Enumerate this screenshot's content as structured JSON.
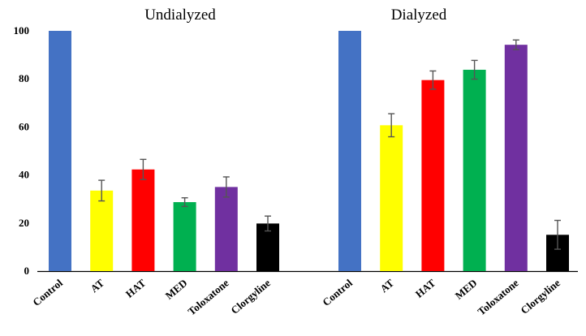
{
  "chart_data": {
    "type": "bar",
    "title": "",
    "xlabel": "",
    "ylabel": "",
    "ylim": [
      0,
      100
    ],
    "yticks": [
      "0",
      "20",
      "40",
      "60",
      "80",
      "100"
    ],
    "panels": [
      {
        "title": "Undialyzed",
        "categories": [
          "Control",
          "AT",
          "HAT",
          "MED",
          "Toloxatone",
          "Clorgyline"
        ],
        "values": [
          100,
          33.5,
          42.3,
          28.7,
          35,
          19.8
        ],
        "errors": [
          0,
          4.3,
          4.2,
          1.8,
          4.2,
          3.1
        ],
        "colors": [
          "#4472C4",
          "#FFFF00",
          "#FF0000",
          "#00B050",
          "#7030A0",
          "#000000"
        ]
      },
      {
        "title": "Dialyzed",
        "categories": [
          "Control",
          "AT",
          "HAT",
          "MED",
          "Toloxatone",
          "Clorgyline"
        ],
        "values": [
          100,
          60.7,
          79.5,
          83.8,
          94.2,
          15.1
        ],
        "errors": [
          0,
          4.8,
          3.8,
          3.9,
          2.0,
          6.0
        ],
        "colors": [
          "#4472C4",
          "#FFFF00",
          "#FF0000",
          "#00B050",
          "#7030A0",
          "#000000"
        ]
      }
    ]
  }
}
